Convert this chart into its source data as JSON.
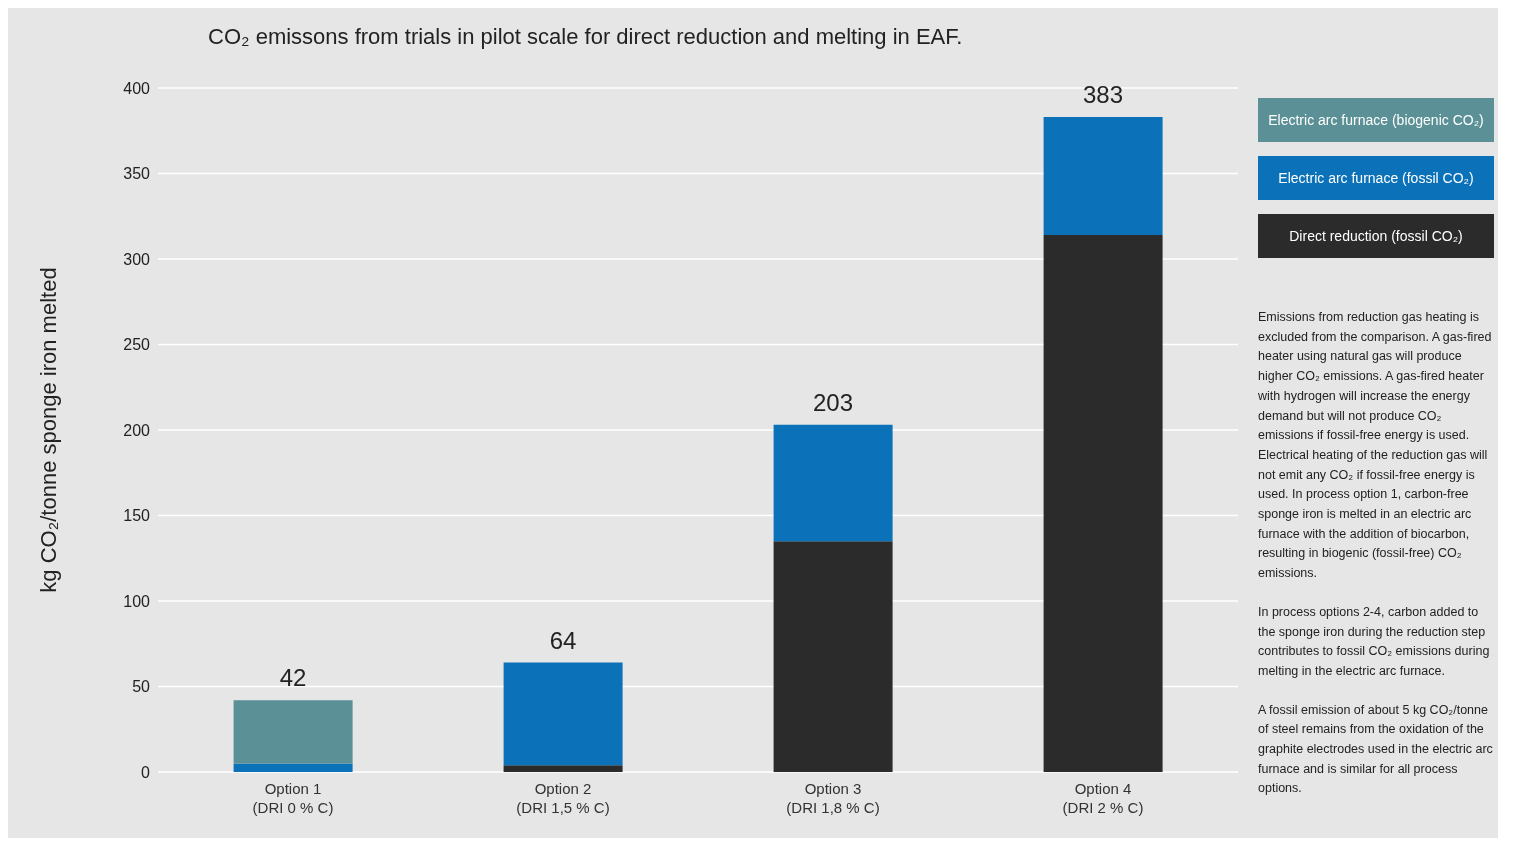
{
  "chart_data": {
    "type": "bar",
    "title": "CO₂ emissons from trials in pilot scale for direct reduction and melting in EAF.",
    "ylabel": "kg CO₂/tonne sponge iron melted",
    "categories": [
      "Option 1\n(DRI 0 % C)",
      "Option 2\n(DRI 1,5 % C)",
      "Option 3\n(DRI 1,8 % C)",
      "Option 4\n(DRI 2 % C)"
    ],
    "stacked": true,
    "series": [
      {
        "name": "Direct reduction (fossil  CO₂)",
        "color": "#2b2b2b",
        "values": [
          0,
          4,
          135,
          314
        ]
      },
      {
        "name": "Electric arc furnace (fossil  CO₂)",
        "color": "#0b72ba",
        "values": [
          5,
          60,
          68,
          69
        ]
      },
      {
        "name": "Electric arc furnace (biogenic  CO₂)",
        "color": "#5a9096",
        "values": [
          37,
          0,
          0,
          0
        ]
      }
    ],
    "totals": [
      "42",
      "64",
      "203",
      "383"
    ],
    "ylim": [
      0,
      400
    ],
    "yticks": [
      0,
      50,
      100,
      150,
      200,
      250,
      300,
      350,
      400
    ],
    "grid": "y",
    "legend": "right",
    "annotations": [
      "Emissions from reduction gas heating is excluded from the comparison. A gas-fired heater using natural gas will produce higher CO₂ emissions. A gas-fired heater with hydrogen will increase the energy demand but will not produce CO₂ emissions if fossil-free energy is used. Electrical heating of the reduction gas will not emit any CO₂ if fossil-free energy is used. In process option 1, carbon-free sponge iron is melted in an electric arc furnace with the addition of biocarbon, resulting in biogenic (fossil-free) CO₂ emissions.",
      "In process options 2-4, carbon added to the sponge iron during the reduction step contributes to fossil CO₂ emissions during melting in the electric arc furnace.",
      "A fossil emission of about 5 kg CO₂/tonne of steel remains from the oxidation of the graphite electrodes used in the electric arc furnace and is similar for all process options."
    ]
  }
}
